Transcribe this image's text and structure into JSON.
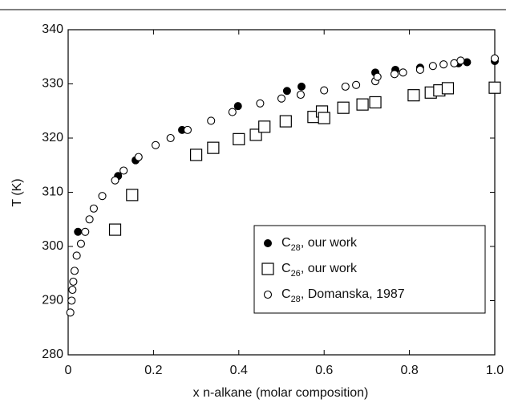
{
  "chart_data": {
    "type": "scatter",
    "x_label": "x n-alkane (molar composition)",
    "y_label": "T (K)",
    "xlim": [
      0,
      1
    ],
    "ylim": [
      280,
      340
    ],
    "xticks": [
      0,
      0.2,
      0.4,
      0.6,
      0.8,
      {
        "value": 1,
        "label": "1.0"
      }
    ],
    "yticks": [
      280,
      290,
      300,
      310,
      320,
      330,
      340
    ],
    "legend_position": "lower right",
    "series": [
      {
        "name": "C28, our work",
        "color": "#000000",
        "marker": "filled-circle",
        "x": [
          0.023,
          0.117,
          0.158,
          0.267,
          0.398,
          0.513,
          0.547,
          0.72,
          0.767,
          0.825,
          0.915,
          0.935,
          1.0
        ],
        "values": [
          302.7,
          313.0,
          315.9,
          321.5,
          325.9,
          328.7,
          329.5,
          332.1,
          332.6,
          333.0,
          333.8,
          334.0,
          334.2
        ]
      },
      {
        "name": "C26, our work",
        "color": "#000000",
        "marker": "open-square",
        "x": [
          0.11,
          0.15,
          0.3,
          0.34,
          0.4,
          0.44,
          0.46,
          0.51,
          0.575,
          0.595,
          0.6,
          0.645,
          0.69,
          0.72,
          0.81,
          0.85,
          0.87,
          0.89,
          1.0
        ],
        "values": [
          303.1,
          309.5,
          316.9,
          318.2,
          319.8,
          320.6,
          322.1,
          323.1,
          323.9,
          324.9,
          323.7,
          325.6,
          326.2,
          326.6,
          327.9,
          328.4,
          328.8,
          329.2,
          329.3
        ]
      },
      {
        "name": "C28, Domanska, 1987",
        "color": "#000000",
        "marker": "open-circle",
        "x": [
          0.005,
          0.008,
          0.01,
          0.012,
          0.015,
          0.02,
          0.03,
          0.04,
          0.05,
          0.06,
          0.08,
          0.11,
          0.13,
          0.165,
          0.205,
          0.24,
          0.28,
          0.335,
          0.385,
          0.45,
          0.5,
          0.545,
          0.6,
          0.65,
          0.675,
          0.72,
          0.725,
          0.765,
          0.785,
          0.825,
          0.855,
          0.88,
          0.905,
          0.92,
          1.0
        ],
        "values": [
          287.8,
          290,
          292,
          293.5,
          295.5,
          298.3,
          300.5,
          302.7,
          305,
          307,
          309.3,
          312.2,
          314,
          316.5,
          318.7,
          320,
          321.5,
          323.2,
          324.8,
          326.4,
          327.3,
          328,
          328.8,
          329.5,
          329.8,
          330.5,
          331.3,
          331.8,
          332.1,
          332.6,
          333.3,
          333.6,
          333.8,
          334.3,
          334.7
        ]
      }
    ]
  }
}
